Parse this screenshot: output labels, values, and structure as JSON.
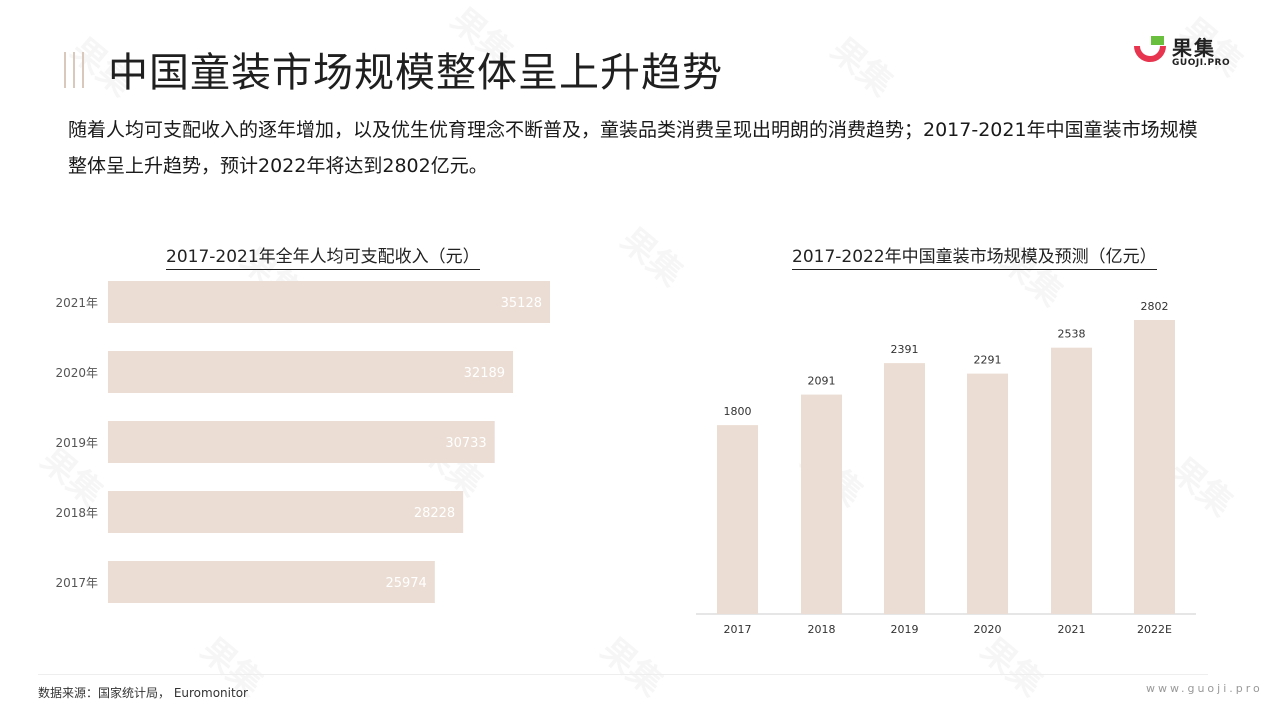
{
  "header": {
    "title": "中国童装市场规模整体呈上升趋势",
    "intro": "随着人均可支配收入的逐年增加，以及优生优育理念不断普及，童装品类消费呈现出明朗的消费趋势；2017-2021年中国童装市场规模整体呈上升趋势，预计2022年将达到2802亿元。"
  },
  "logo": {
    "name_cn": "果集",
    "name_en": "GUOJI.PRO",
    "icon": "guoji-logo-icon"
  },
  "watermark": {
    "text": "果集"
  },
  "colors": {
    "bar": "#ebddd3",
    "bar_label_inside": "#ffffff",
    "axis": "#cccccc",
    "text": "#333333"
  },
  "chart_data": [
    {
      "type": "bar",
      "orientation": "horizontal",
      "title": "2017-2021年全年人均可支配收入（元）",
      "categories": [
        "2021年",
        "2020年",
        "2019年",
        "2018年",
        "2017年"
      ],
      "values": [
        35128,
        32189,
        30733,
        28228,
        25974
      ],
      "data_labels": [
        "35128",
        "32189",
        "30733",
        "28228",
        "25974"
      ]
    },
    {
      "type": "bar",
      "orientation": "vertical",
      "title": "2017-2022年中国童装市场规模及预测（亿元）",
      "categories": [
        "2017",
        "2018",
        "2019",
        "2020",
        "2021",
        "2022E"
      ],
      "values": [
        1800,
        2091,
        2391,
        2291,
        2538,
        2802
      ],
      "data_labels": [
        "1800",
        "2091",
        "2391",
        "2291",
        "2538",
        "2802"
      ]
    }
  ],
  "footer": {
    "source": "数据来源：国家统计局，  Euromonitor",
    "website": "www.guoji.pro"
  }
}
